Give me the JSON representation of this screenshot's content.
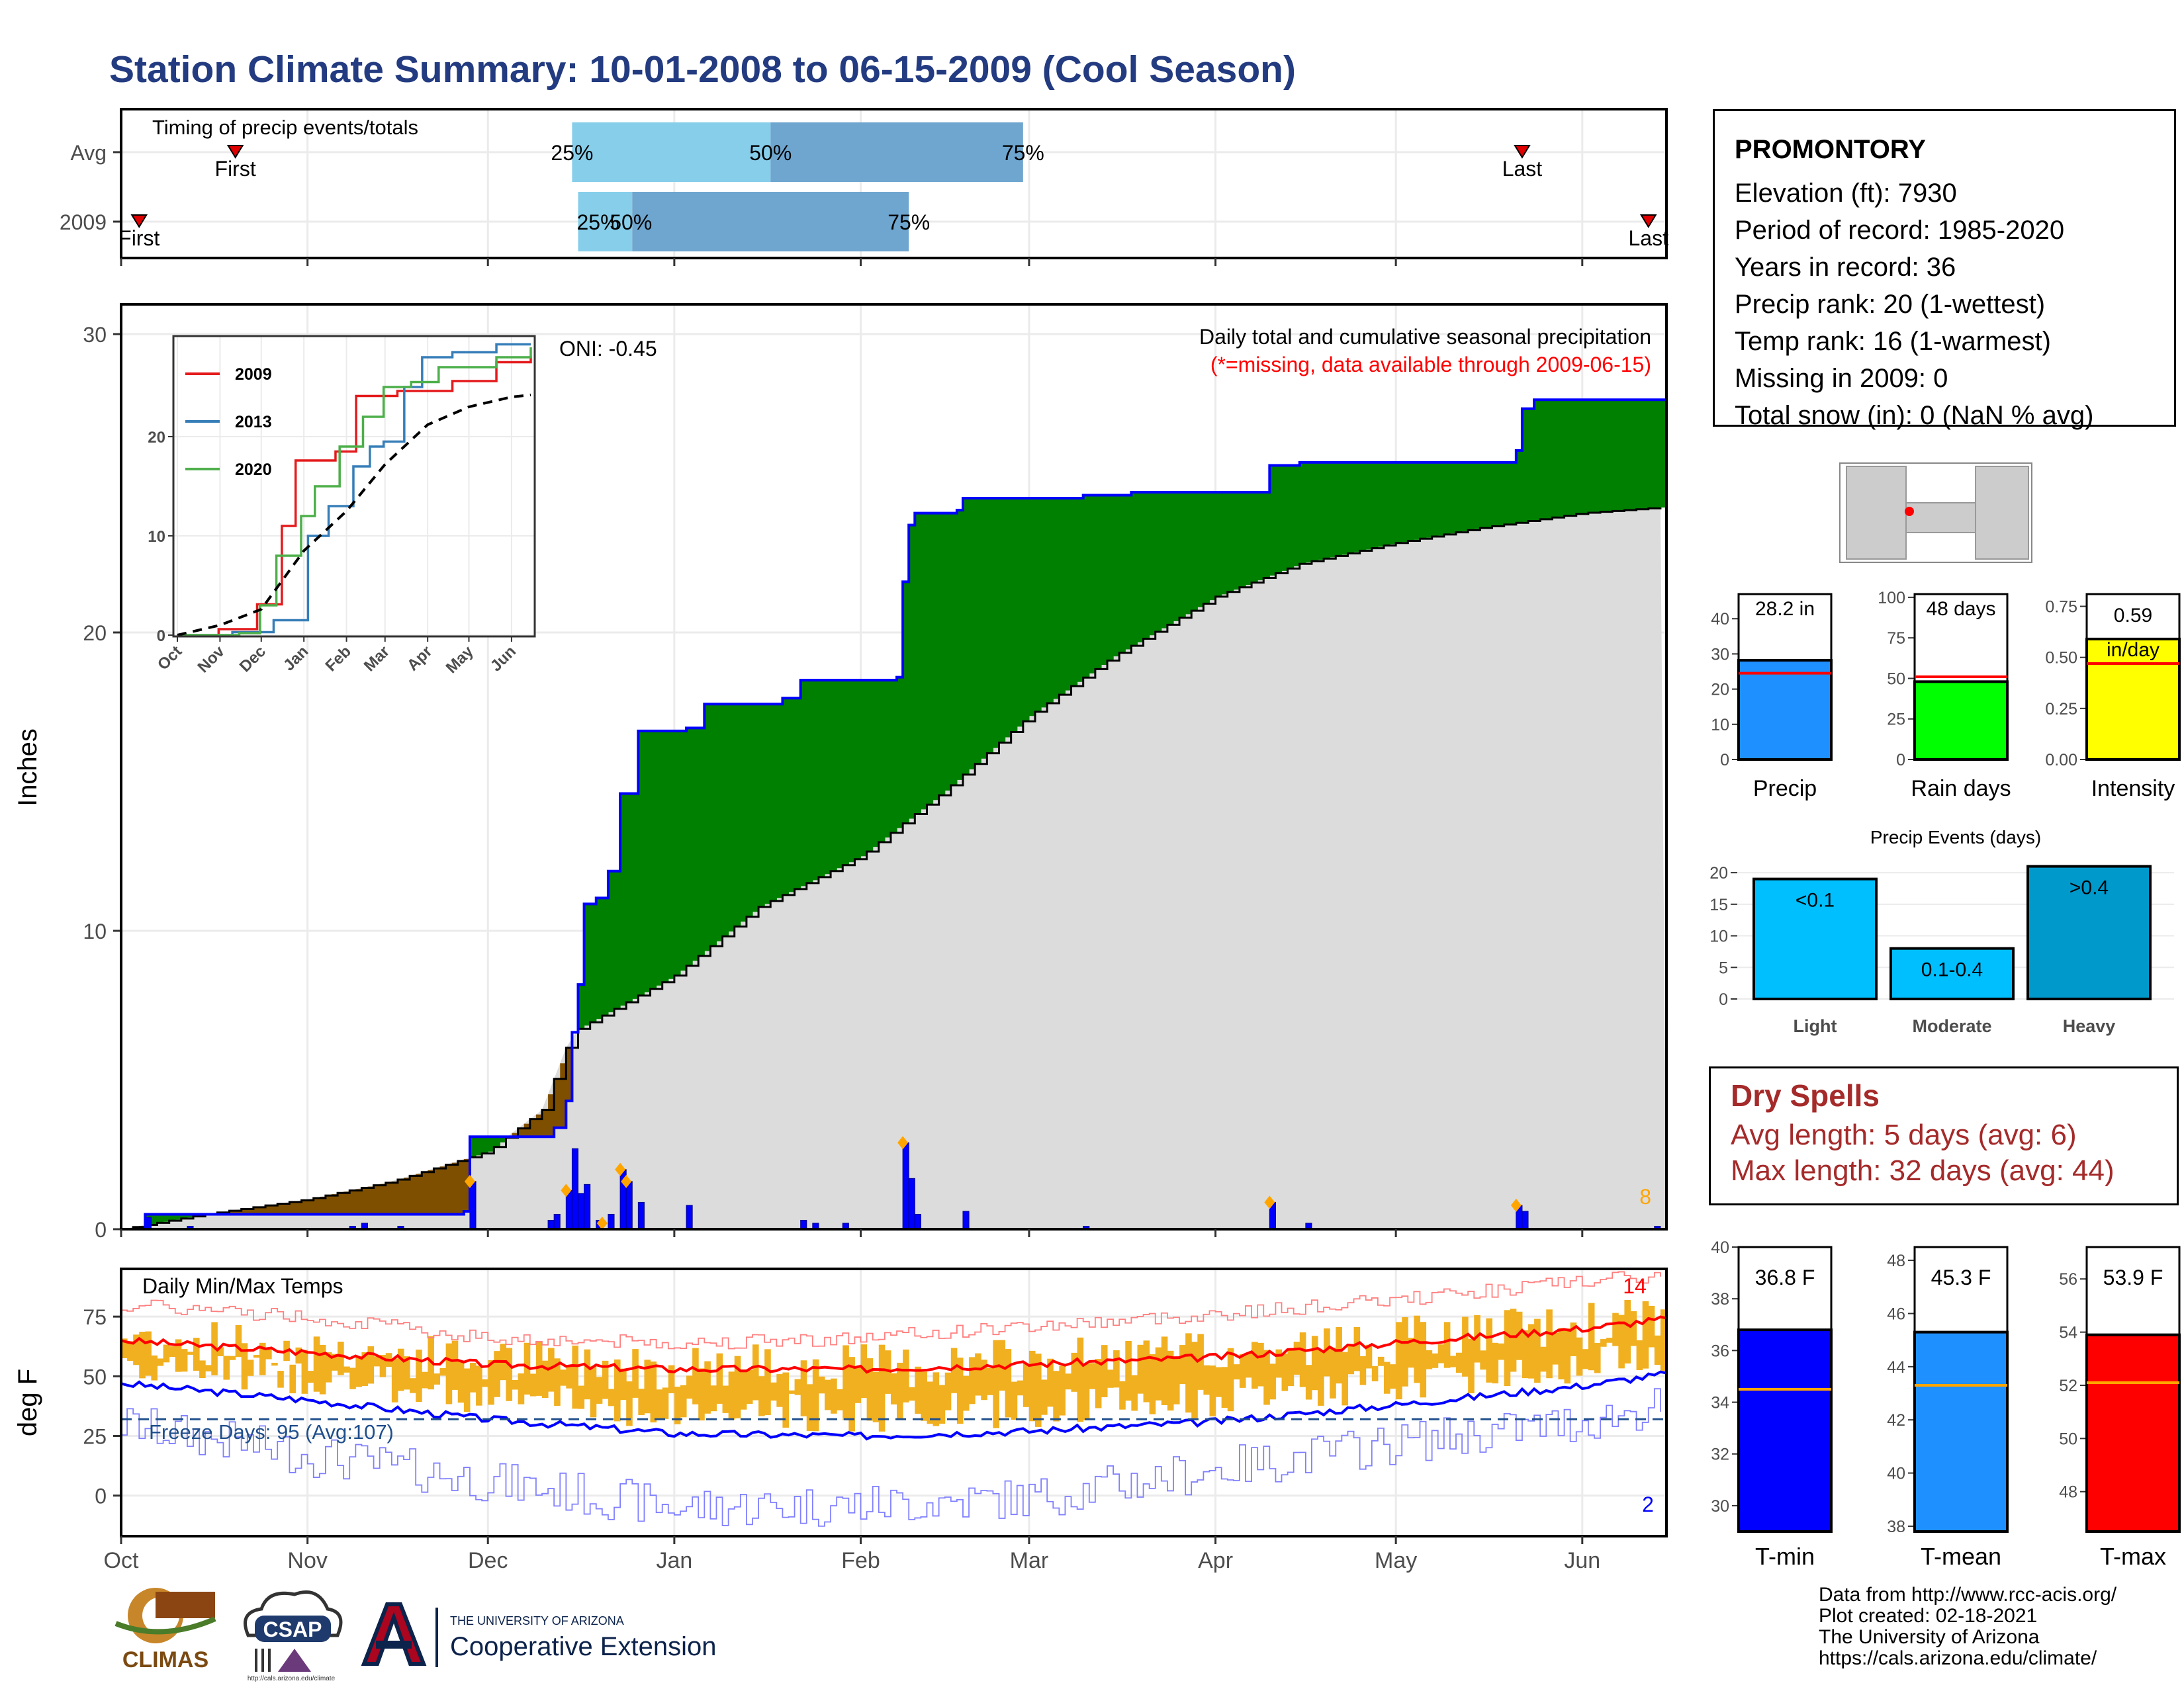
{
  "title": "Station Climate Summary: 10-01-2008 to 06-15-2009 (Cool Season)",
  "station": {
    "name": "PROMONTORY",
    "lines": [
      "Elevation (ft): 7930",
      "Period of record: 1985-2020",
      "Years in record: 36",
      "Precip rank: 20 (1-wettest)",
      "Temp rank: 16 (1-warmest)",
      "Missing in 2009: 0",
      "Total snow (in): 0 (NaN % avg)"
    ]
  },
  "dry_spells": {
    "title": "Dry Spells",
    "avg": "Avg length: 5 days (avg: 6)",
    "max": "Max length: 32 days (avg: 44)"
  },
  "credits": [
    "Data from http://www.rcc-acis.org/",
    "Plot created: 02-18-2021",
    "The University of Arizona",
    "https://cals.arizona.edu/climate/"
  ],
  "logos": {
    "climas": "CLIMAS",
    "csap": "CSAP",
    "csap_url": "http://cals.arizona.edu/climate",
    "ua_small": "THE UNIVERSITY OF ARIZONA",
    "ua_big": "Cooperative Extension"
  },
  "colors": {
    "title": "#233b80",
    "green": "#008000",
    "brown": "#7f4f00",
    "gray": "#dcdcdc",
    "blue": "#0000ff",
    "lightblue": "#87ceeb",
    "steelblue": "#6fa6d0",
    "orange": "#f0b020",
    "red": "#ff0000",
    "dodger": "#1e90ff",
    "lime": "#00ff00",
    "yellow": "#ffff00",
    "light_event": "#00bfff",
    "heavy_event": "#0099cc"
  },
  "chart_data": [
    {
      "id": "timing",
      "type": "bar",
      "title": "Timing of precip events/totals",
      "categories": [
        "Avg",
        "2009"
      ],
      "x_ticks": [
        "Oct",
        "Nov",
        "Dec",
        "Jan",
        "Feb",
        "Mar",
        "Apr",
        "May",
        "Jun"
      ],
      "x_domain": [
        "2008-10-01",
        "2009-06-15"
      ],
      "series": [
        {
          "category": "Avg",
          "first": "2008-10-20",
          "p25": "2008-12-15",
          "p50": "2009-01-17",
          "p75": "2009-02-28",
          "last": "2009-05-22",
          "labels": {
            "first": "First",
            "p25": "25%",
            "p50": "50%",
            "p75": "75%",
            "last": "Last"
          }
        },
        {
          "category": "2009",
          "first": "2008-10-04",
          "p25": "2008-12-16",
          "p50": "2008-12-25",
          "p75": "2009-02-09",
          "last": "2009-06-12",
          "labels": {
            "first": "First",
            "p25": "25%",
            "p50": "50%",
            "p75": "75%",
            "last": "Last"
          }
        }
      ]
    },
    {
      "id": "precip",
      "type": "area",
      "title": "Daily total and cumulative seasonal precipitation",
      "subtitle": "(*=missing, data available through 2009-06-15)",
      "annotation": "ONI: -0.45",
      "corner_count": "8",
      "ylabel": "Inches",
      "ylim": [
        0,
        30
      ],
      "y_ticks": [
        0,
        10,
        20,
        30
      ],
      "x_ticks": [
        "Oct",
        "Nov",
        "Dec",
        "Jan",
        "Feb",
        "Mar",
        "Apr",
        "May",
        "Jun"
      ],
      "x_domain": [
        "2008-10-01",
        "2009-06-15"
      ],
      "cumulative_2009": [
        [
          "2008-10-01",
          0.0
        ],
        [
          "2008-10-05",
          0.5
        ],
        [
          "2008-11-27",
          0.6
        ],
        [
          "2008-11-28",
          3.1
        ],
        [
          "2008-12-10",
          3.1
        ],
        [
          "2008-12-12",
          3.4
        ],
        [
          "2008-12-14",
          4.3
        ],
        [
          "2008-12-15",
          6.6
        ],
        [
          "2008-12-16",
          8.2
        ],
        [
          "2008-12-17",
          10.9
        ],
        [
          "2008-12-19",
          11.1
        ],
        [
          "2008-12-21",
          12.0
        ],
        [
          "2008-12-23",
          14.6
        ],
        [
          "2008-12-26",
          16.7
        ],
        [
          "2009-01-03",
          16.8
        ],
        [
          "2009-01-06",
          17.6
        ],
        [
          "2009-01-19",
          17.8
        ],
        [
          "2009-01-22",
          18.4
        ],
        [
          "2009-02-07",
          18.5
        ],
        [
          "2009-02-08",
          21.7
        ],
        [
          "2009-02-09",
          23.6
        ],
        [
          "2009-02-10",
          24.0
        ],
        [
          "2009-02-17",
          24.1
        ],
        [
          "2009-02-18",
          24.5
        ],
        [
          "2009-03-10",
          24.6
        ],
        [
          "2009-03-18",
          24.7
        ],
        [
          "2009-04-09",
          24.7
        ],
        [
          "2009-04-10",
          25.6
        ],
        [
          "2009-04-15",
          25.7
        ],
        [
          "2009-05-20",
          25.7
        ],
        [
          "2009-05-21",
          26.1
        ],
        [
          "2009-05-22",
          27.5
        ],
        [
          "2009-05-24",
          27.8
        ],
        [
          "2009-06-10",
          27.8
        ],
        [
          "2009-06-15",
          28.1
        ]
      ],
      "cumulative_avg": [
        [
          "2008-10-01",
          0.0
        ],
        [
          "2008-10-15",
          0.5
        ],
        [
          "2008-11-01",
          1.0
        ],
        [
          "2008-11-15",
          1.6
        ],
        [
          "2008-12-01",
          2.6
        ],
        [
          "2008-12-10",
          4.0
        ],
        [
          "2008-12-15",
          6.6
        ],
        [
          "2009-01-01",
          8.5
        ],
        [
          "2009-01-15",
          10.8
        ],
        [
          "2009-02-01",
          12.5
        ],
        [
          "2009-02-15",
          14.7
        ],
        [
          "2009-03-01",
          17.2
        ],
        [
          "2009-03-15",
          19.2
        ],
        [
          "2009-04-01",
          21.2
        ],
        [
          "2009-04-15",
          22.3
        ],
        [
          "2009-05-01",
          23.0
        ],
        [
          "2009-05-15",
          23.5
        ],
        [
          "2009-06-01",
          24.0
        ],
        [
          "2009-06-15",
          24.2
        ]
      ],
      "daily_bars": [
        [
          "2008-10-05",
          0.4
        ],
        [
          "2008-10-12",
          0.1
        ],
        [
          "2008-11-08",
          0.1
        ],
        [
          "2008-11-10",
          0.2
        ],
        [
          "2008-11-16",
          0.1
        ],
        [
          "2008-11-28",
          1.6
        ],
        [
          "2008-12-11",
          0.3
        ],
        [
          "2008-12-12",
          0.5
        ],
        [
          "2008-12-14",
          1.3
        ],
        [
          "2008-12-15",
          2.7
        ],
        [
          "2008-12-16",
          1.2
        ],
        [
          "2008-12-17",
          1.5
        ],
        [
          "2008-12-19",
          0.3
        ],
        [
          "2008-12-21",
          0.5
        ],
        [
          "2008-12-23",
          2.0
        ],
        [
          "2008-12-24",
          1.6
        ],
        [
          "2008-12-26",
          0.9
        ],
        [
          "2009-01-03",
          0.8
        ],
        [
          "2009-01-22",
          0.3
        ],
        [
          "2009-01-24",
          0.2
        ],
        [
          "2009-01-29",
          0.2
        ],
        [
          "2009-02-08",
          2.9
        ],
        [
          "2009-02-09",
          1.7
        ],
        [
          "2009-02-10",
          0.5
        ],
        [
          "2009-02-18",
          0.6
        ],
        [
          "2009-03-10",
          0.1
        ],
        [
          "2009-04-10",
          0.9
        ],
        [
          "2009-04-16",
          0.2
        ],
        [
          "2009-05-21",
          0.8
        ],
        [
          "2009-05-22",
          0.6
        ],
        [
          "2009-06-13",
          0.1
        ]
      ],
      "event_markers": [
        "2008-11-28",
        "2008-12-14",
        "2008-12-20",
        "2008-12-23",
        "2008-12-24",
        "2009-02-08",
        "2009-04-10",
        "2009-05-21"
      ]
    },
    {
      "id": "inset",
      "type": "line",
      "x_ticks": [
        "Oct",
        "Nov",
        "Dec",
        "Jan",
        "Feb",
        "Mar",
        "Apr",
        "May",
        "Jun"
      ],
      "y_ticks": [
        0,
        10,
        20
      ],
      "ylim": [
        0,
        30
      ],
      "series": [
        {
          "name": "2009",
          "color": "#e41a1c",
          "points": [
            [
              0,
              0
            ],
            [
              30,
              0.6
            ],
            [
              58,
              3.1
            ],
            [
              76,
              11
            ],
            [
              86,
              17.6
            ],
            [
              115,
              18.5
            ],
            [
              130,
              24.1
            ],
            [
              160,
              24.6
            ],
            [
              200,
              25.6
            ],
            [
              232,
              27.5
            ],
            [
              257,
              28.1
            ]
          ]
        },
        {
          "name": "2013",
          "color": "#377eb8",
          "points": [
            [
              0,
              0
            ],
            [
              40,
              0.3
            ],
            [
              70,
              1.5
            ],
            [
              95,
              10
            ],
            [
              110,
              13
            ],
            [
              128,
              17
            ],
            [
              140,
              19
            ],
            [
              150,
              19.5
            ],
            [
              165,
              25
            ],
            [
              178,
              28
            ],
            [
              200,
              28.5
            ],
            [
              232,
              29.3
            ],
            [
              257,
              29.3
            ]
          ]
        },
        {
          "name": "2020",
          "color": "#4daf4a",
          "points": [
            [
              0,
              0
            ],
            [
              45,
              0.2
            ],
            [
              60,
              3
            ],
            [
              72,
              8
            ],
            [
              90,
              12
            ],
            [
              100,
              15
            ],
            [
              118,
              19
            ],
            [
              135,
              22
            ],
            [
              150,
              25
            ],
            [
              170,
              25.5
            ],
            [
              190,
              27
            ],
            [
              232,
              28
            ],
            [
              257,
              29
            ]
          ]
        },
        {
          "name": "avg",
          "color": "#000000",
          "dashed": true,
          "points": [
            [
              0,
              0
            ],
            [
              31,
              1
            ],
            [
              61,
              2.6
            ],
            [
              92,
              8.5
            ],
            [
              123,
              12.5
            ],
            [
              151,
              17.2
            ],
            [
              182,
              21.2
            ],
            [
              212,
              23
            ],
            [
              243,
              24
            ],
            [
              257,
              24.2
            ]
          ]
        }
      ]
    },
    {
      "id": "temps",
      "type": "line",
      "title": "Daily Min/Max Temps",
      "ylabel": "deg F",
      "ylim": [
        -17,
        95
      ],
      "y_ticks": [
        0,
        25,
        50,
        75
      ],
      "x_ticks": [
        "Oct",
        "Nov",
        "Dec",
        "Jan",
        "Feb",
        "Mar",
        "Apr",
        "May",
        "Jun"
      ],
      "x_domain": [
        "2008-10-01",
        "2009-06-15"
      ],
      "freeze_line": 32,
      "freeze_label": "Freeze Days: 95 (Avg:107)",
      "record_high_count": "14",
      "record_low_count": "2",
      "avg_max_points": [
        [
          0,
          65
        ],
        [
          31,
          60
        ],
        [
          61,
          55
        ],
        [
          92,
          53
        ],
        [
          123,
          53
        ],
        [
          151,
          55
        ],
        [
          182,
          58
        ],
        [
          212,
          64
        ],
        [
          243,
          70
        ],
        [
          257,
          74
        ]
      ],
      "avg_min_points": [
        [
          0,
          47
        ],
        [
          31,
          40
        ],
        [
          61,
          32
        ],
        [
          92,
          26
        ],
        [
          123,
          25
        ],
        [
          151,
          27
        ],
        [
          182,
          31
        ],
        [
          212,
          38
        ],
        [
          243,
          46
        ],
        [
          257,
          51
        ]
      ],
      "record_high_points": [
        [
          0,
          80
        ],
        [
          31,
          75
        ],
        [
          61,
          66
        ],
        [
          92,
          64
        ],
        [
          123,
          66
        ],
        [
          151,
          71
        ],
        [
          182,
          76
        ],
        [
          212,
          82
        ],
        [
          243,
          90
        ],
        [
          257,
          92
        ]
      ],
      "record_low_points": [
        [
          0,
          30
        ],
        [
          31,
          17
        ],
        [
          61,
          6
        ],
        [
          92,
          -5
        ],
        [
          123,
          -4
        ],
        [
          151,
          -1
        ],
        [
          182,
          11
        ],
        [
          212,
          22
        ],
        [
          243,
          31
        ],
        [
          257,
          38
        ]
      ]
    },
    {
      "id": "summary_bars",
      "type": "bar",
      "panels": [
        {
          "label": "Precip",
          "value": 28.2,
          "value_label": "28.2 in",
          "avg": 24.5,
          "ylim": [
            0,
            47
          ],
          "ticks": [
            0,
            10,
            20,
            30,
            40
          ],
          "color": "#1e90ff"
        },
        {
          "label": "Rain days",
          "value": 48,
          "value_label": "48 days",
          "avg": 51,
          "ylim": [
            0,
            102
          ],
          "ticks": [
            0,
            25,
            50,
            75,
            100
          ],
          "color": "#00ff00"
        },
        {
          "label": "Intensity",
          "value": 0.59,
          "value_label": "0.59 in/day",
          "avg": 0.47,
          "ylim": [
            0,
            0.81
          ],
          "ticks": [
            0.0,
            0.25,
            0.5,
            0.75
          ],
          "color": "#ffff00"
        }
      ]
    },
    {
      "id": "events",
      "type": "bar",
      "title": "Precip Events (days)",
      "categories": [
        "Light",
        "Moderate",
        "Heavy"
      ],
      "bar_labels": [
        "<0.1",
        "0.1-0.4",
        ">0.4"
      ],
      "values": [
        19,
        8,
        21
      ],
      "ylim": [
        0,
        22
      ],
      "ticks": [
        0,
        5,
        10,
        15,
        20
      ],
      "colors": [
        "#00bfff",
        "#00bfff",
        "#0099cc"
      ]
    },
    {
      "id": "temp_bars",
      "type": "bar",
      "panels": [
        {
          "label": "T-min",
          "value": 36.8,
          "value_label": "36.8 F",
          "avg": 34.5,
          "ylim": [
            29,
            40
          ],
          "ticks": [
            30,
            32,
            34,
            36,
            38,
            40
          ],
          "color": "#0000ff"
        },
        {
          "label": "T-mean",
          "value": 45.3,
          "value_label": "45.3 F",
          "avg": 43.3,
          "ylim": [
            37.8,
            48.5
          ],
          "ticks": [
            38,
            40,
            42,
            44,
            46,
            48
          ],
          "color": "#1e90ff"
        },
        {
          "label": "T-max",
          "value": 53.9,
          "value_label": "53.9 F",
          "avg": 52.1,
          "ylim": [
            46.5,
            57.2
          ],
          "ticks": [
            48,
            50,
            52,
            54,
            56
          ],
          "color": "#ff0000"
        }
      ]
    }
  ]
}
